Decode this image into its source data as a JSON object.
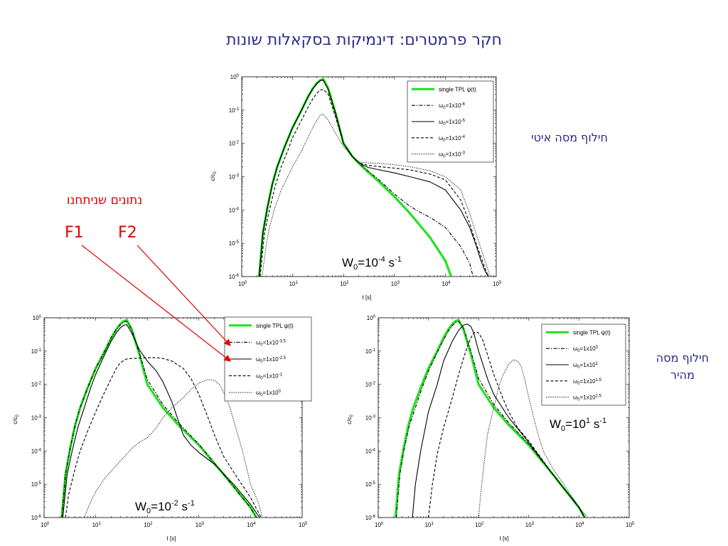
{
  "slide": {
    "title": "חקר פרמטרים: דינמיקות בסקאלות שונות",
    "label_slow": "חילוף מסה איטי",
    "label_fast_line1": "חילוף מסה",
    "label_fast_line2": "מהיר",
    "annotation": "נתונים שניתחנו",
    "f1": "F1",
    "f2": "F2"
  },
  "colors": {
    "title": "#2a2a8c",
    "annotation": "#e00000",
    "green": "#22e022",
    "black": "#000000"
  },
  "chart_data": [
    {
      "type": "line",
      "title": "",
      "xlabel": "t [s]",
      "ylabel": "c/c0",
      "xscale": "log",
      "yscale": "log",
      "xlim": [
        1,
        100000
      ],
      "ylim": [
        1e-06,
        1
      ],
      "x_ticks": [
        "10^0",
        "10^1",
        "10^2",
        "10^3",
        "10^4",
        "10^5"
      ],
      "y_ticks": [
        "10^0",
        "10^-1",
        "10^-2",
        "10^-3",
        "10^-4",
        "10^-5",
        "10^-6"
      ],
      "annotation": {
        "base": "W",
        "sub": "0",
        "mid": "=10",
        "sup": "-4",
        "end": " s",
        "end_sup": "-1"
      },
      "legend_position": "top-right",
      "series": [
        {
          "name": "single TPL ψ(t)",
          "style": "green",
          "x": [
            2.2,
            2.6,
            3.2,
            4,
            5,
            7,
            10,
            15,
            20,
            25,
            30,
            35,
            40,
            50,
            70,
            100,
            150,
            200,
            300,
            500,
            1000,
            2000,
            5000,
            10000,
            13000
          ],
          "y": [
            1e-06,
            2e-05,
            0.00012,
            0.0006,
            0.002,
            0.008,
            0.03,
            0.1,
            0.25,
            0.45,
            0.65,
            0.8,
            0.85,
            0.45,
            0.08,
            0.01,
            0.004,
            0.0025,
            0.0014,
            0.0007,
            0.00025,
            8e-05,
            1.5e-05,
            3e-06,
            1e-06
          ]
        },
        {
          "name": "ω0=1x10^-6",
          "style": "dashdot",
          "x": [
            2.2,
            2.6,
            3.2,
            4,
            5,
            7,
            10,
            15,
            20,
            25,
            30,
            35,
            40,
            50,
            70,
            100,
            150,
            200,
            300,
            500,
            1000,
            2000,
            3000,
            5000,
            10000,
            20000,
            30000,
            35000
          ],
          "y": [
            1e-06,
            2e-05,
            0.00012,
            0.0006,
            0.002,
            0.008,
            0.03,
            0.1,
            0.25,
            0.44,
            0.63,
            0.77,
            0.8,
            0.42,
            0.08,
            0.01,
            0.004,
            0.0026,
            0.0015,
            0.0008,
            0.0003,
            0.00013,
            9e-05,
            6e-05,
            3e-05,
            8e-06,
            2.5e-06,
            1e-06
          ]
        },
        {
          "name": "ω0=1x10^-5",
          "style": "solid",
          "x": [
            2.2,
            2.6,
            3.2,
            4,
            5,
            7,
            10,
            15,
            20,
            25,
            30,
            35,
            40,
            50,
            70,
            100,
            150,
            200,
            300,
            500,
            1000,
            2000,
            5000,
            10000,
            20000,
            30000,
            40000,
            50000,
            60000,
            70000
          ],
          "y": [
            1e-06,
            2e-05,
            0.00012,
            0.0006,
            0.002,
            0.008,
            0.03,
            0.1,
            0.25,
            0.44,
            0.63,
            0.77,
            0.8,
            0.42,
            0.08,
            0.01,
            0.004,
            0.0026,
            0.0019,
            0.0016,
            0.0013,
            0.001,
            0.0007,
            0.0004,
            0.0001,
            3e-05,
            9e-06,
            3e-06,
            1.5e-06,
            1e-06
          ]
        },
        {
          "name": "ω0=1x10^-4",
          "style": "dashed",
          "x": [
            2.3,
            2.8,
            3.5,
            4.5,
            6,
            8,
            10,
            15,
            20,
            25,
            30,
            35,
            40,
            50,
            70,
            100,
            150,
            200,
            300,
            500,
            1000,
            2000,
            5000,
            10000,
            20000,
            30000,
            40000,
            50000,
            60000,
            70000
          ],
          "y": [
            1e-06,
            2e-05,
            0.0001,
            0.0005,
            0.002,
            0.006,
            0.015,
            0.05,
            0.12,
            0.22,
            0.32,
            0.4,
            0.42,
            0.3,
            0.06,
            0.01,
            0.004,
            0.0026,
            0.0022,
            0.002,
            0.0018,
            0.0016,
            0.0012,
            0.0008,
            0.0002,
            4e-05,
            1e-05,
            4e-06,
            1.8e-06,
            1e-06
          ]
        },
        {
          "name": "ω0=1x10^-3",
          "style": "dotted",
          "x": [
            2.5,
            3,
            3.5,
            4.5,
            6,
            8,
            10,
            15,
            20,
            25,
            30,
            35,
            40,
            50,
            70,
            100,
            150,
            200,
            300,
            500,
            1000,
            2000,
            5000,
            10000,
            20000,
            30000,
            40000,
            50000,
            60000,
            70000,
            75000
          ],
          "y": [
            1e-06,
            8e-06,
            3e-05,
            0.00012,
            0.0004,
            0.001,
            0.002,
            0.006,
            0.015,
            0.03,
            0.05,
            0.07,
            0.075,
            0.05,
            0.02,
            0.008,
            0.004,
            0.0028,
            0.0026,
            0.0025,
            0.0023,
            0.002,
            0.0015,
            0.001,
            0.0004,
            8e-05,
            2e-05,
            7e-06,
            3e-06,
            1.5e-06,
            1e-06
          ]
        }
      ]
    },
    {
      "type": "line",
      "title": "",
      "xlabel": "t [s]",
      "ylabel": "c/c0",
      "xscale": "log",
      "yscale": "log",
      "xlim": [
        1,
        100000
      ],
      "ylim": [
        1e-06,
        1
      ],
      "x_ticks": [
        "10^0",
        "10^1",
        "10^2",
        "10^3",
        "10^4",
        "10^5"
      ],
      "y_ticks": [
        "10^0",
        "10^-1",
        "10^-2",
        "10^-3",
        "10^-4",
        "10^-5",
        "10^-6"
      ],
      "annotation": {
        "base": "W",
        "sub": "0",
        "mid": "=10",
        "sup": "-2",
        "end": " s",
        "end_sup": "-1"
      },
      "legend_position": "top-right-outside",
      "series": [
        {
          "name": "single TPL ψ(t)",
          "style": "green",
          "x": [
            2.2,
            2.6,
            3.2,
            4,
            5,
            7,
            10,
            15,
            20,
            25,
            30,
            35,
            40,
            50,
            70,
            100,
            200,
            400,
            1000,
            3000,
            10000,
            13000
          ],
          "y": [
            1e-06,
            2e-05,
            0.00012,
            0.0006,
            0.002,
            0.008,
            0.03,
            0.1,
            0.25,
            0.45,
            0.65,
            0.8,
            0.85,
            0.45,
            0.08,
            0.01,
            0.002,
            0.0006,
            0.00015,
            2e-05,
            2e-06,
            1e-06
          ]
        },
        {
          "name": "ω0=1x10^-3.5",
          "style": "dashdot",
          "x": [
            2.2,
            2.6,
            3.2,
            4,
            5,
            7,
            10,
            15,
            20,
            25,
            30,
            35,
            40,
            50,
            70,
            100,
            200,
            400,
            1000,
            3000,
            10000,
            13000
          ],
          "y": [
            1e-06,
            2e-05,
            0.00012,
            0.0006,
            0.002,
            0.008,
            0.03,
            0.1,
            0.25,
            0.44,
            0.62,
            0.75,
            0.78,
            0.44,
            0.09,
            0.014,
            0.0025,
            0.0007,
            0.00016,
            2e-05,
            2e-06,
            1e-06
          ]
        },
        {
          "name": "ω0=1x10^-2.5",
          "style": "solid",
          "x": [
            2.3,
            2.8,
            3.5,
            4.5,
            6,
            8,
            10,
            15,
            20,
            25,
            30,
            35,
            40,
            50,
            70,
            100,
            150,
            200,
            300,
            400,
            500,
            700,
            1000,
            2000,
            5000,
            10000,
            15000
          ],
          "y": [
            1e-06,
            2e-05,
            0.0001,
            0.0005,
            0.002,
            0.008,
            0.02,
            0.08,
            0.2,
            0.35,
            0.5,
            0.6,
            0.62,
            0.35,
            0.11,
            0.05,
            0.025,
            0.012,
            0.003,
            0.0008,
            0.0003,
            0.00015,
            9e-05,
            4e-05,
            9e-06,
            2.5e-06,
            1e-06
          ]
        },
        {
          "name": "ω0=1x10^-1",
          "style": "dashed",
          "x": [
            2.6,
            3,
            4,
            5,
            7,
            10,
            15,
            20,
            25,
            30,
            40,
            50,
            70,
            100,
            150,
            200,
            300,
            500,
            700,
            1000,
            1500,
            2000,
            3000,
            5000,
            10000,
            16000
          ],
          "y": [
            1e-06,
            5e-06,
            3e-05,
            0.0001,
            0.0004,
            0.0015,
            0.006,
            0.015,
            0.03,
            0.045,
            0.058,
            0.06,
            0.062,
            0.063,
            0.063,
            0.06,
            0.05,
            0.03,
            0.015,
            0.005,
            0.001,
            0.0003,
            7e-05,
            2e-05,
            4e-06,
            1e-06
          ]
        },
        {
          "name": "ω0=1x10^0",
          "style": "dotted",
          "x": [
            6,
            8,
            10,
            15,
            20,
            30,
            40,
            50,
            70,
            100,
            150,
            200,
            300,
            500,
            700,
            1000,
            1500,
            2000,
            2500,
            3000,
            4000,
            5000,
            7000,
            10000,
            14000,
            17000
          ],
          "y": [
            1e-06,
            3e-06,
            6e-06,
            1.5e-05,
            2.5e-05,
            5e-05,
            8e-05,
            0.00012,
            0.00018,
            0.00025,
            0.0005,
            0.001,
            0.002,
            0.004,
            0.007,
            0.011,
            0.014,
            0.013,
            0.01,
            0.006,
            0.002,
            0.0006,
            0.0001,
            1e-05,
            3e-06,
            1e-06
          ]
        }
      ]
    },
    {
      "type": "line",
      "title": "",
      "xlabel": "t [s]",
      "ylabel": "c/c0",
      "xscale": "log",
      "yscale": "log",
      "xlim": [
        1,
        100000
      ],
      "ylim": [
        1e-06,
        1
      ],
      "x_ticks": [
        "10^0",
        "10^1",
        "10^2",
        "10^3",
        "10^4",
        "10^5"
      ],
      "y_ticks": [
        "10^0",
        "10^-1",
        "10^-2",
        "10^-3",
        "10^-4",
        "10^-5",
        "10^-6"
      ],
      "annotation": {
        "base": "W",
        "sub": "0",
        "mid": "=10",
        "sup": "1",
        "end": " s",
        "end_sup": "-1"
      },
      "legend_position": "top-right",
      "series": [
        {
          "name": "single TPL ψ(t)",
          "style": "green",
          "x": [
            2.2,
            2.6,
            3.2,
            4,
            5,
            7,
            10,
            15,
            20,
            25,
            30,
            35,
            40,
            50,
            70,
            100,
            200,
            400,
            1000,
            3000,
            10000,
            13000
          ],
          "y": [
            1e-06,
            2e-05,
            0.00012,
            0.0006,
            0.002,
            0.008,
            0.03,
            0.1,
            0.25,
            0.45,
            0.65,
            0.8,
            0.85,
            0.45,
            0.08,
            0.01,
            0.002,
            0.0006,
            0.00015,
            2e-05,
            2e-06,
            1e-06
          ]
        },
        {
          "name": "ω0=1x10^0",
          "style": "dashdot",
          "x": [
            2.3,
            2.7,
            3.3,
            4.2,
            5.5,
            7.5,
            10,
            15,
            20,
            25,
            30,
            35,
            40,
            50,
            70,
            100,
            200,
            400,
            1000,
            3000,
            10000,
            13000
          ],
          "y": [
            1e-06,
            2e-05,
            0.00012,
            0.0006,
            0.002,
            0.008,
            0.025,
            0.09,
            0.22,
            0.4,
            0.58,
            0.72,
            0.78,
            0.5,
            0.1,
            0.015,
            0.0025,
            0.0007,
            0.00016,
            2e-05,
            2e-06,
            1e-06
          ]
        },
        {
          "name": "ω0=1x10^1",
          "style": "solid",
          "x": [
            4.8,
            5.5,
            7,
            10,
            15,
            20,
            30,
            40,
            50,
            60,
            70,
            80,
            100,
            150,
            200,
            400,
            1000,
            3000,
            10000,
            13000
          ],
          "y": [
            1e-06,
            1e-05,
            0.0001,
            0.0015,
            0.01,
            0.05,
            0.2,
            0.42,
            0.6,
            0.65,
            0.55,
            0.35,
            0.1,
            0.015,
            0.005,
            0.001,
            0.00018,
            2e-05,
            2e-06,
            1e-06
          ]
        },
        {
          "name": "ω0=1x10^1.5",
          "style": "dashed",
          "x": [
            10,
            12,
            15,
            20,
            30,
            40,
            50,
            60,
            70,
            80,
            90,
            100,
            120,
            150,
            200,
            300,
            400,
            600,
            1000,
            3000,
            10000,
            13000
          ],
          "y": [
            1e-06,
            1e-05,
            8e-05,
            0.0005,
            0.004,
            0.02,
            0.06,
            0.14,
            0.25,
            0.35,
            0.38,
            0.35,
            0.22,
            0.08,
            0.02,
            0.004,
            0.0015,
            0.0005,
            0.0002,
            2e-05,
            2e-06,
            1e-06
          ]
        },
        {
          "name": "ω0=1x10^2.5",
          "style": "dotted",
          "x": [
            100,
            110,
            130,
            150,
            200,
            250,
            300,
            400,
            500,
            600,
            700,
            800,
            1000,
            1300,
            1600,
            2000,
            3000,
            5000,
            10000,
            15000
          ],
          "y": [
            1e-06,
            5e-06,
            5e-05,
            0.0003,
            0.002,
            0.008,
            0.018,
            0.04,
            0.055,
            0.05,
            0.035,
            0.018,
            0.004,
            0.0008,
            0.00025,
            9e-05,
            3e-05,
            1e-05,
            2e-06,
            1e-06
          ]
        }
      ]
    }
  ]
}
